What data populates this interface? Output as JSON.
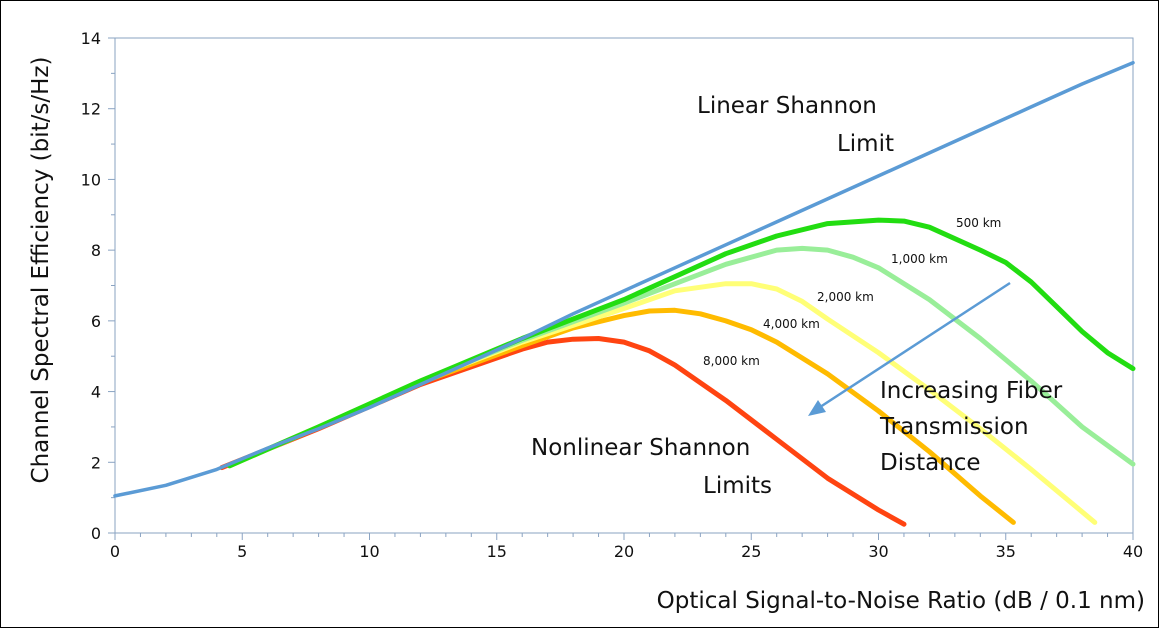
{
  "chart_data": {
    "type": "line",
    "xlabel": "Optical Signal-to-Noise Ratio (dB / 0.1 nm)",
    "ylabel": "Channel Spectral Efficiency (bit/s/Hz)",
    "xlim": [
      0,
      40
    ],
    "ylim": [
      0,
      14
    ],
    "xticks": [
      0,
      5,
      10,
      15,
      20,
      25,
      30,
      35,
      40
    ],
    "yticks": [
      0,
      2,
      4,
      6,
      8,
      10,
      12,
      14
    ],
    "grid": false,
    "series": [
      {
        "name": "Linear Shannon Limit",
        "color": "#5b9bd5",
        "x": [
          0,
          2,
          4,
          6,
          8,
          10,
          12,
          14,
          16,
          18,
          20,
          22,
          24,
          26,
          28,
          30,
          32,
          34,
          36,
          38,
          40
        ],
        "y": [
          1.05,
          1.35,
          1.8,
          2.4,
          2.95,
          3.55,
          4.2,
          4.85,
          5.5,
          6.2,
          6.85,
          7.5,
          8.15,
          8.8,
          9.45,
          10.1,
          10.75,
          11.4,
          12.05,
          12.7,
          13.3
        ]
      },
      {
        "name": "500 km",
        "color": "#22dd11",
        "x": [
          4.5,
          8,
          12,
          16,
          20,
          24,
          26,
          28,
          30,
          31,
          32,
          34,
          35,
          36,
          37,
          38,
          39,
          40
        ],
        "y": [
          1.9,
          3.0,
          4.3,
          5.5,
          6.6,
          7.9,
          8.4,
          8.75,
          8.85,
          8.82,
          8.65,
          8.0,
          7.65,
          7.1,
          6.4,
          5.7,
          5.1,
          4.65
        ]
      },
      {
        "name": "1,000 km",
        "color": "#99ee99",
        "x": [
          4.5,
          8,
          12,
          16,
          20,
          24,
          26,
          27,
          28,
          29,
          30,
          32,
          34,
          36,
          38,
          40
        ],
        "y": [
          1.9,
          3.0,
          4.3,
          5.45,
          6.5,
          7.6,
          8.0,
          8.05,
          8.0,
          7.8,
          7.5,
          6.6,
          5.5,
          4.3,
          3.0,
          1.95
        ]
      },
      {
        "name": "2,000 km",
        "color": "#ffff77",
        "x": [
          4.5,
          8,
          12,
          16,
          20,
          22,
          24,
          25,
          26,
          27,
          28,
          30,
          32,
          34,
          36,
          38.5
        ],
        "y": [
          1.9,
          3.0,
          4.3,
          5.4,
          6.35,
          6.85,
          7.05,
          7.05,
          6.9,
          6.55,
          6.05,
          5.1,
          4.05,
          2.95,
          1.8,
          0.3
        ]
      },
      {
        "name": "4,000 km",
        "color": "#ffbb00",
        "x": [
          4.5,
          8,
          12,
          16,
          18,
          20,
          21,
          22,
          23,
          24,
          25,
          26,
          28,
          30,
          32,
          34,
          35.3
        ],
        "y": [
          1.9,
          3.0,
          4.25,
          5.3,
          5.8,
          6.15,
          6.28,
          6.3,
          6.2,
          6.0,
          5.75,
          5.4,
          4.5,
          3.45,
          2.3,
          1.05,
          0.3
        ]
      },
      {
        "name": "8,000 km",
        "color": "#ff4411",
        "x": [
          4.2,
          8,
          12,
          16,
          17,
          18,
          19,
          20,
          21,
          22,
          24,
          26,
          28,
          30,
          31
        ],
        "y": [
          1.85,
          2.95,
          4.2,
          5.2,
          5.4,
          5.48,
          5.5,
          5.4,
          5.15,
          4.75,
          3.75,
          2.65,
          1.55,
          0.65,
          0.25
        ]
      }
    ],
    "annotations": {
      "linear_line1": "Linear Shannon",
      "linear_line2": "Limit",
      "nonlinear_line1": "Nonlinear Shannon",
      "nonlinear_line2": "Limits",
      "increasing_line1": "Increasing Fiber",
      "increasing_line2": "Transmission",
      "increasing_line3": "Distance"
    },
    "arrow_color": "#5b9bd5"
  }
}
